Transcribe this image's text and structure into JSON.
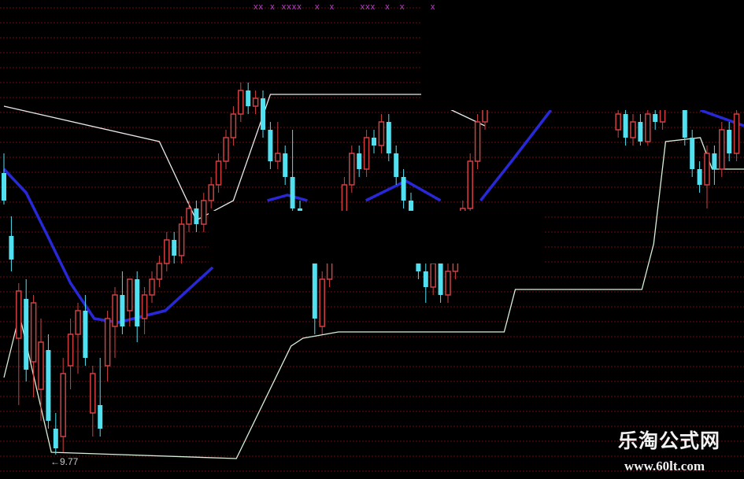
{
  "chart_data": {
    "type": "candlestick",
    "title": "",
    "xlabel": "",
    "ylabel": "",
    "grid": true,
    "ylim": [
      9.5,
      15.5
    ],
    "colors": {
      "up": "#d04040",
      "down": "#50e0f0",
      "upper_line": "#e8e8e8",
      "lower_line": "#d8f0d8",
      "ma_line": "#2828d8",
      "grid": "#6a1010",
      "signal_marks": "#c040d0"
    },
    "candles": [
      [
        13.35,
        13.6,
        12.95,
        13.0
      ],
      [
        12.55,
        12.8,
        12.1,
        12.25
      ],
      [
        11.25,
        11.95,
        10.4,
        11.85
      ],
      [
        11.75,
        12.0,
        10.7,
        10.85
      ],
      [
        10.95,
        11.8,
        10.5,
        11.7
      ],
      [
        10.6,
        11.5,
        10.2,
        11.2
      ],
      [
        11.1,
        11.3,
        10.1,
        10.2
      ],
      [
        10.1,
        10.3,
        9.77,
        9.85
      ],
      [
        10.0,
        11.0,
        9.8,
        10.8
      ],
      [
        10.9,
        11.5,
        10.6,
        11.3
      ],
      [
        11.3,
        11.7,
        10.8,
        11.6
      ],
      [
        11.6,
        11.8,
        10.9,
        11.0
      ],
      [
        10.3,
        10.9,
        10.0,
        10.8
      ],
      [
        10.4,
        11.0,
        10.0,
        10.1
      ],
      [
        10.9,
        11.6,
        10.7,
        11.5
      ],
      [
        11.4,
        11.9,
        11.0,
        11.8
      ],
      [
        11.8,
        12.1,
        11.3,
        11.4
      ],
      [
        11.6,
        12.0,
        11.4,
        12.0
      ],
      [
        12.0,
        12.1,
        11.2,
        11.4
      ],
      [
        11.5,
        11.9,
        11.3,
        11.8
      ],
      [
        11.8,
        12.1,
        11.7,
        12.0
      ],
      [
        12.0,
        12.3,
        11.9,
        12.2
      ],
      [
        12.2,
        12.6,
        12.1,
        12.5
      ],
      [
        12.5,
        12.6,
        12.2,
        12.3
      ],
      [
        12.3,
        12.8,
        12.2,
        12.7
      ],
      [
        12.7,
        13.0,
        12.6,
        12.9
      ],
      [
        12.9,
        13.0,
        12.6,
        12.7
      ],
      [
        12.7,
        13.1,
        12.6,
        13.0
      ],
      [
        13.0,
        13.3,
        12.9,
        13.2
      ],
      [
        13.2,
        13.6,
        13.1,
        13.5
      ],
      [
        13.5,
        13.9,
        13.4,
        13.8
      ],
      [
        13.8,
        14.2,
        13.7,
        14.1
      ],
      [
        14.1,
        14.5,
        14.0,
        14.4
      ],
      [
        14.4,
        14.5,
        14.1,
        14.2
      ],
      [
        14.2,
        14.4,
        14.1,
        14.3
      ],
      [
        14.3,
        14.4,
        13.8,
        13.9
      ],
      [
        13.9,
        14.0,
        13.4,
        13.5
      ],
      [
        13.5,
        14.0,
        13.4,
        13.6
      ],
      [
        13.6,
        13.7,
        13.2,
        13.3
      ],
      [
        13.3,
        13.9,
        12.8,
        12.9
      ],
      [
        12.9,
        13.0,
        12.5,
        12.6
      ],
      [
        12.6,
        12.7,
        12.2,
        12.3
      ],
      [
        12.3,
        12.4,
        11.3,
        11.5
      ],
      [
        11.4,
        12.1,
        11.3,
        12.0
      ],
      [
        12.0,
        12.4,
        11.9,
        12.3
      ],
      [
        12.3,
        12.6,
        12.2,
        12.5
      ],
      [
        12.5,
        13.3,
        12.4,
        13.2
      ],
      [
        13.2,
        13.7,
        13.1,
        13.6
      ],
      [
        13.6,
        13.7,
        13.3,
        13.4
      ],
      [
        13.4,
        13.9,
        13.3,
        13.8
      ],
      [
        13.8,
        13.9,
        13.6,
        13.7
      ],
      [
        13.7,
        14.1,
        13.6,
        14.0
      ],
      [
        14.0,
        14.1,
        13.5,
        13.6
      ],
      [
        13.6,
        13.7,
        13.2,
        13.3
      ],
      [
        13.3,
        13.4,
        12.9,
        13.0
      ],
      [
        13.0,
        13.1,
        12.5,
        12.6
      ],
      [
        12.6,
        12.7,
        12.0,
        12.1
      ],
      [
        12.1,
        12.2,
        11.7,
        11.9
      ],
      [
        11.9,
        12.3,
        11.8,
        12.2
      ],
      [
        12.2,
        12.3,
        11.7,
        11.8
      ],
      [
        11.8,
        12.2,
        11.7,
        12.1
      ],
      [
        12.1,
        12.4,
        12.0,
        12.3
      ],
      [
        12.3,
        13.0,
        12.2,
        12.9
      ],
      [
        12.9,
        13.6,
        12.8,
        13.5
      ],
      [
        13.5,
        14.1,
        13.4,
        14.0
      ],
      [
        14.0,
        14.3,
        13.9,
        14.2
      ],
      null,
      null,
      null,
      null,
      null,
      null,
      null,
      null,
      null,
      null,
      null,
      null,
      null,
      null,
      null,
      null,
      null,
      [
        13.9,
        14.2,
        13.8,
        14.1
      ],
      [
        14.1,
        14.2,
        13.7,
        13.8
      ],
      [
        13.8,
        14.1,
        13.7,
        14.0
      ],
      [
        14.0,
        14.1,
        13.7,
        13.75
      ],
      [
        13.75,
        14.2,
        13.7,
        14.1
      ],
      [
        14.1,
        14.2,
        13.9,
        14.0
      ],
      [
        14.0,
        14.3,
        13.9,
        14.2
      ],
      null,
      null,
      [
        14.2,
        14.3,
        13.7,
        13.8
      ],
      [
        13.8,
        13.9,
        13.3,
        13.4
      ],
      [
        13.4,
        13.5,
        13.1,
        13.2
      ],
      [
        13.2,
        13.7,
        12.9,
        13.6
      ],
      [
        13.6,
        13.7,
        13.2,
        13.4
      ],
      [
        13.4,
        14.0,
        13.3,
        13.9
      ],
      [
        13.9,
        14.0,
        13.5,
        13.6
      ],
      [
        13.6,
        14.2,
        13.5,
        14.1
      ]
    ],
    "upper_line": [
      [
        0,
        14.2
      ],
      [
        21,
        13.75
      ],
      [
        26,
        12.75
      ],
      [
        31,
        13.0
      ],
      [
        36,
        14.35
      ],
      [
        57,
        14.35
      ],
      [
        60.5,
        14.15
      ],
      [
        65,
        13.95
      ]
    ],
    "lower_line": [
      [
        0,
        10.75
      ],
      [
        2.1,
        11.55
      ],
      [
        6.4,
        9.8
      ],
      [
        31.4,
        9.72
      ],
      [
        38.8,
        11.15
      ],
      [
        40.4,
        11.25
      ],
      [
        45.2,
        11.33
      ],
      [
        67.6,
        11.33
      ],
      [
        69.1,
        11.87
      ],
      [
        86.2,
        11.87
      ],
      [
        87.8,
        12.45
      ],
      [
        89.4,
        13.75
      ],
      [
        94.1,
        13.8
      ],
      [
        95.7,
        13.4
      ],
      [
        100,
        13.4
      ]
    ],
    "ma_line_segments": [
      [
        [
          0,
          13.4
        ],
        [
          3,
          13.1
        ],
        [
          5.9,
          12.55
        ],
        [
          9,
          11.95
        ],
        [
          12.2,
          11.5
        ],
        [
          15.4,
          11.45
        ],
        [
          21.8,
          11.6
        ],
        [
          28.2,
          12.15
        ]
      ],
      [
        [
          35.6,
          13.0
        ],
        [
          38.3,
          13.07
        ],
        [
          41,
          13.0
        ]
      ],
      [
        [
          48.9,
          13.0
        ],
        [
          54.3,
          13.25
        ],
        [
          59,
          13.0
        ]
      ],
      [
        [
          64.4,
          13.0
        ],
        [
          68.6,
          13.5
        ],
        [
          73.9,
          14.15
        ]
      ],
      [
        [
          94.1,
          14.15
        ],
        [
          100,
          13.95
        ]
      ]
    ],
    "annotations": {
      "low_label": "←9.77",
      "signal_marks": "xx  x  xxxx    x   x        xxx   x   x        x"
    }
  },
  "watermark": {
    "name": "乐淘公式网",
    "url": "www.60lt.com"
  }
}
